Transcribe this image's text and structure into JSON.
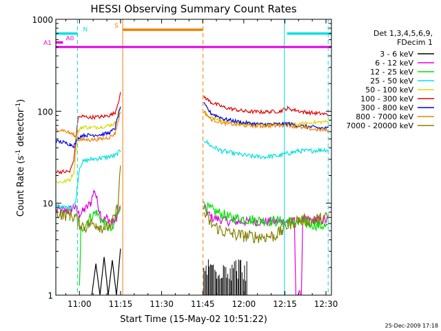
{
  "chart_data": {
    "type": "line",
    "title": "HESSI Observing Summary Count Rates",
    "xlabel": "Start Time (15-May-02 10:51:22)",
    "ylabel": "Count Rate (s⁻¹ detector⁻¹)",
    "ylabel_parts": {
      "main": "Count Rate (s",
      "sup1": "-1",
      "mid": " detector",
      "sup2": "-1",
      "end": ")"
    },
    "x_axis": {
      "unit": "minutes",
      "ticks": [
        {
          "value": 660,
          "label": "11:00"
        },
        {
          "value": 675,
          "label": "11:15"
        },
        {
          "value": 690,
          "label": "11:30"
        },
        {
          "value": 705,
          "label": "11:45"
        },
        {
          "value": 720,
          "label": "12:00"
        },
        {
          "value": 735,
          "label": "12:15"
        },
        {
          "value": 750,
          "label": "12:30"
        }
      ],
      "range": [
        651.37,
        752.0
      ]
    },
    "y_axis": {
      "scale": "log",
      "range": [
        1,
        1000
      ],
      "ticks": [
        {
          "value": 1,
          "label": "1"
        },
        {
          "value": 10,
          "label": "10"
        },
        {
          "value": 100,
          "label": "100"
        },
        {
          "value": 1000,
          "label": "1000"
        }
      ]
    },
    "legend": {
      "placement": "right",
      "header": [
        "Det 1,3,4,5,6,9,",
        "FDecim 1"
      ],
      "entries": [
        {
          "label": "3 - 6 keV",
          "color": "#000000"
        },
        {
          "label": "6 - 12 keV",
          "color": "#e000e0"
        },
        {
          "label": "12 - 25 keV",
          "color": "#00e000"
        },
        {
          "label": "25 - 50 keV",
          "color": "#00e0e0"
        },
        {
          "label": "50 - 100 keV",
          "color": "#d8d800"
        },
        {
          "label": "100 - 300 keV",
          "color": "#e00000"
        },
        {
          "label": "300 - 800 keV",
          "color": "#0000e0"
        },
        {
          "label": "800 - 7000 keV",
          "color": "#f08000"
        },
        {
          "label": "7000 - 20000 keV",
          "color": "#808000"
        }
      ]
    },
    "flags": [
      {
        "label": "N",
        "color": "#00e0e0",
        "level": 700,
        "segments": [
          [
            651.4,
            659.3
          ],
          [
            735.8,
            752.0
          ]
        ]
      },
      {
        "label": "S",
        "color": "#f08000",
        "level": 770,
        "segments": [
          [
            675.8,
            705.1
          ]
        ]
      },
      {
        "label": "A0",
        "color": "#e000e0",
        "level": 560,
        "segments": [
          [
            651.4,
            654.0
          ]
        ]
      },
      {
        "label": "A1",
        "color": "#e000e0",
        "level": 500,
        "segments": [
          [
            651.4,
            752.0
          ]
        ]
      }
    ],
    "markers": [
      {
        "x": 651.4,
        "color": "#00e0e0",
        "style": "solid"
      },
      {
        "x": 659.3,
        "color": "#00e0e0",
        "style": "dashed"
      },
      {
        "x": 675.8,
        "color": "#f08000",
        "style": "solid"
      },
      {
        "x": 705.1,
        "color": "#f08000",
        "style": "dashed"
      },
      {
        "x": 734.8,
        "color": "#00e0e0",
        "style": "solid"
      },
      {
        "x": 750.8,
        "color": "#00e0e0",
        "style": "dashed"
      }
    ],
    "series": [
      {
        "name": "3 - 6 keV",
        "color": "#000000",
        "noise": 0.0,
        "points": [
          [
            664.5,
            1
          ],
          [
            666,
            2.2
          ],
          [
            667.5,
            1
          ],
          [
            669,
            2.6
          ],
          [
            670.5,
            1
          ],
          [
            672,
            2.4
          ],
          [
            673.5,
            1
          ],
          [
            675,
            3.2
          ]
        ]
      },
      {
        "name": "6 - 12 keV",
        "color": "#e000e0",
        "noise": 0.05,
        "points": [
          [
            651.5,
            8.5
          ],
          [
            656,
            8.2
          ],
          [
            658,
            9.2
          ],
          [
            660,
            7.5
          ],
          [
            662,
            8.5
          ],
          [
            664,
            10
          ],
          [
            665.5,
            14
          ],
          [
            667,
            9
          ],
          [
            668.5,
            6.5
          ],
          [
            670,
            7
          ],
          [
            672,
            6
          ],
          [
            673.5,
            7
          ],
          [
            675,
            9
          ],
          [
            705.4,
            9
          ],
          [
            708,
            7
          ],
          [
            715,
            6.3
          ],
          [
            725,
            6.3
          ],
          [
            734,
            6.3
          ],
          [
            737,
            6.3
          ],
          [
            738.5,
            6.3
          ],
          [
            739,
            1
          ],
          [
            741,
            1
          ],
          [
            741.5,
            6.5
          ],
          [
            746,
            6.5
          ],
          [
            751,
            6.5
          ]
        ]
      },
      {
        "name": "12 - 25 keV",
        "color": "#00e000",
        "noise": 0.06,
        "points": [
          [
            660,
            1.2
          ],
          [
            660.5,
            5
          ],
          [
            663,
            6.5
          ],
          [
            666,
            8
          ],
          [
            669,
            6
          ],
          [
            672,
            5
          ],
          [
            675,
            10
          ],
          [
            705.4,
            9.5
          ],
          [
            708,
            8.5
          ],
          [
            715,
            7
          ],
          [
            725,
            6.5
          ],
          [
            736,
            6.3
          ],
          [
            742,
            6
          ],
          [
            747,
            5.8
          ],
          [
            751,
            5.5
          ]
        ]
      },
      {
        "name": "25 - 50 keV",
        "color": "#00e0e0",
        "noise": 0.025,
        "points": [
          [
            651.5,
            9.5
          ],
          [
            654,
            9
          ],
          [
            657,
            9
          ],
          [
            658.5,
            10
          ],
          [
            660,
            24
          ],
          [
            661,
            28
          ],
          [
            664,
            30
          ],
          [
            668,
            31
          ],
          [
            671,
            32
          ],
          [
            673,
            33
          ],
          [
            675,
            37
          ],
          [
            705.4,
            49
          ],
          [
            708,
            42
          ],
          [
            712,
            37
          ],
          [
            718,
            34
          ],
          [
            724,
            32
          ],
          [
            728,
            32
          ],
          [
            733,
            33
          ],
          [
            736.5,
            35
          ],
          [
            740,
            37
          ],
          [
            744,
            37
          ],
          [
            748,
            38
          ],
          [
            751,
            38
          ]
        ]
      },
      {
        "name": "50 - 100 keV",
        "color": "#d8d800",
        "noise": 0.02,
        "points": [
          [
            651.5,
            17
          ],
          [
            654,
            17
          ],
          [
            656.5,
            18
          ],
          [
            658,
            22
          ],
          [
            659.5,
            60
          ],
          [
            661,
            68
          ],
          [
            664,
            66
          ],
          [
            668,
            68
          ],
          [
            671,
            70
          ],
          [
            673,
            74
          ],
          [
            675,
            110
          ],
          [
            705.4,
            95
          ],
          [
            708,
            85
          ],
          [
            713,
            78
          ],
          [
            720,
            73
          ],
          [
            726,
            72
          ],
          [
            733,
            72
          ],
          [
            736,
            73
          ],
          [
            739,
            72
          ],
          [
            743,
            74
          ],
          [
            747,
            76
          ],
          [
            751,
            77
          ]
        ]
      },
      {
        "name": "100 - 300 keV",
        "color": "#e00000",
        "noise": 0.02,
        "points": [
          [
            651.5,
            22
          ],
          [
            654,
            22
          ],
          [
            656.5,
            22
          ],
          [
            658,
            30
          ],
          [
            659.5,
            85
          ],
          [
            661,
            88
          ],
          [
            664,
            86
          ],
          [
            668,
            87
          ],
          [
            671,
            90
          ],
          [
            673,
            96
          ],
          [
            675,
            155
          ],
          [
            705.4,
            145
          ],
          [
            708,
            125
          ],
          [
            713,
            110
          ],
          [
            720,
            100
          ],
          [
            726,
            98
          ],
          [
            733,
            100
          ],
          [
            736,
            108
          ],
          [
            739,
            102
          ],
          [
            743,
            97
          ],
          [
            747,
            95
          ],
          [
            751,
            92
          ]
        ]
      },
      {
        "name": "300 - 800 keV",
        "color": "#0000e0",
        "noise": 0.02,
        "points": [
          [
            651.5,
            47
          ],
          [
            654,
            46
          ],
          [
            656.5,
            44
          ],
          [
            658,
            42
          ],
          [
            659.5,
            51
          ],
          [
            661,
            55
          ],
          [
            664,
            55
          ],
          [
            668,
            56
          ],
          [
            671,
            58
          ],
          [
            673,
            65
          ],
          [
            675,
            115
          ],
          [
            705.4,
            120
          ],
          [
            708,
            95
          ],
          [
            713,
            82
          ],
          [
            720,
            75
          ],
          [
            726,
            72
          ],
          [
            733,
            72
          ],
          [
            736,
            74
          ],
          [
            739,
            70
          ],
          [
            743,
            68
          ],
          [
            747,
            66
          ],
          [
            751,
            65
          ]
        ]
      },
      {
        "name": "800 - 7000 keV",
        "color": "#f08000",
        "noise": 0.02,
        "points": [
          [
            651.5,
            64
          ],
          [
            654,
            62
          ],
          [
            656.5,
            58
          ],
          [
            658,
            55
          ],
          [
            659.5,
            49
          ],
          [
            661,
            49
          ],
          [
            664,
            49
          ],
          [
            668,
            50
          ],
          [
            671,
            52
          ],
          [
            673,
            57
          ],
          [
            675,
            100
          ],
          [
            705.4,
            100
          ],
          [
            708,
            82
          ],
          [
            713,
            74
          ],
          [
            720,
            70
          ],
          [
            726,
            69
          ],
          [
            733,
            70
          ],
          [
            736,
            71
          ],
          [
            739,
            68
          ],
          [
            743,
            65
          ],
          [
            747,
            63
          ],
          [
            751,
            62
          ]
        ]
      },
      {
        "name": "7000 - 20000 keV",
        "color": "#808000",
        "noise": 0.07,
        "points": [
          [
            651.5,
            8
          ],
          [
            654,
            7.5
          ],
          [
            656.5,
            7.5
          ],
          [
            658.5,
            7
          ],
          [
            660,
            6
          ],
          [
            662,
            5.5
          ],
          [
            664,
            6
          ],
          [
            666,
            6
          ],
          [
            668,
            5.5
          ],
          [
            670,
            5.5
          ],
          [
            672,
            6
          ],
          [
            674,
            9
          ],
          [
            675,
            25
          ],
          [
            705.4,
            8
          ],
          [
            708,
            6
          ],
          [
            712,
            5
          ],
          [
            716,
            4.6
          ],
          [
            720,
            4.4
          ],
          [
            726,
            4.3
          ],
          [
            731,
            4.4
          ],
          [
            734,
            5
          ],
          [
            736.5,
            6
          ],
          [
            740,
            6.5
          ],
          [
            744,
            6.5
          ],
          [
            748,
            6.8
          ],
          [
            751,
            7
          ]
        ]
      }
    ]
  },
  "footer": {
    "timestamp": "25-Dec-2009 17:18"
  }
}
